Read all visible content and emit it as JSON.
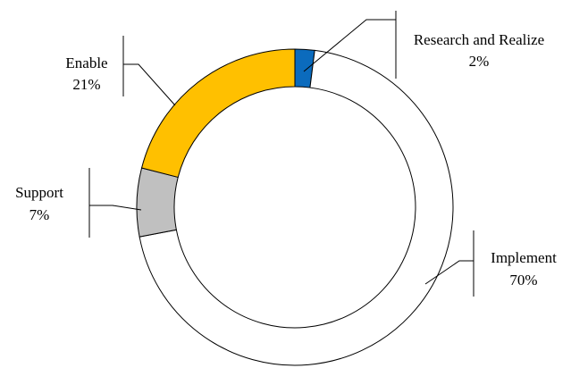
{
  "chart_data": {
    "type": "pie",
    "variant": "donut",
    "title": "",
    "start_angle_deg": 0,
    "direction": "clockwise",
    "legend": "none",
    "slices": [
      {
        "label": "Research and Realize",
        "value": 2,
        "value_label": "2%",
        "color": "#0b6bbd"
      },
      {
        "label": "Implement",
        "value": 70,
        "value_label": "70%",
        "color": "#ffffff"
      },
      {
        "label": "Support",
        "value": 7,
        "value_label": "7%",
        "color": "#c0c0c0"
      },
      {
        "label": "Enable",
        "value": 21,
        "value_label": "21%",
        "color": "#ffc000"
      }
    ]
  }
}
